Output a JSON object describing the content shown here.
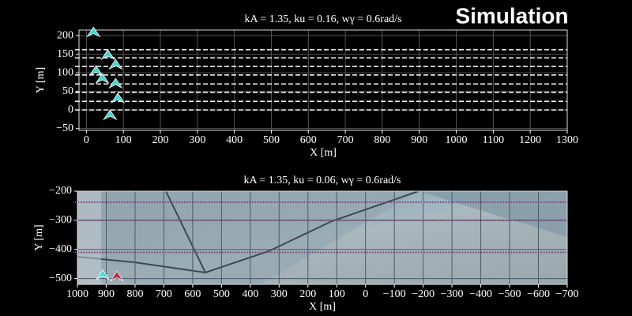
{
  "header": {
    "title": "Simulation"
  },
  "chart_data": [
    {
      "type": "scatter",
      "title": "kA = 1.35, ku = 0.16, wγ = 0.6rad/s",
      "xlabel": "X [m]",
      "ylabel": "Y [m]",
      "xlim": [
        -20,
        1300
      ],
      "ylim": [
        -55,
        215
      ],
      "xticks": [
        0,
        100,
        200,
        300,
        400,
        500,
        600,
        700,
        800,
        900,
        1000,
        1100,
        1200,
        1300
      ],
      "yticks": [
        {
          "value": -50,
          "label": "−50"
        },
        0,
        50,
        100,
        150,
        200
      ],
      "grid": true,
      "lanes": {
        "color": "#ffffff",
        "style": "dashed",
        "y": [
          162,
          140,
          117,
          94,
          70,
          47,
          23,
          0
        ]
      },
      "series": [
        {
          "color": "#3fd8d0",
          "x": [
            19,
            58,
            79,
            26,
            43,
            79,
            85,
            64
          ],
          "values": [
            208,
            147,
            121,
            104,
            83,
            70,
            30,
            -15
          ]
        }
      ]
    },
    {
      "type": "scatter",
      "title": "kA = 1.35, ku = 0.06, wγ = 0.6rad/s",
      "xlabel": "X [m]",
      "ylabel": "Y [m]",
      "xlim": [
        1000,
        -700
      ],
      "ylim": [
        -520,
        -200
      ],
      "xticks": [
        1000,
        900,
        800,
        700,
        600,
        500,
        400,
        300,
        200,
        100,
        0,
        {
          "value": -100,
          "label": "−100"
        },
        {
          "value": -200,
          "label": "−200"
        },
        {
          "value": -300,
          "label": "−300"
        },
        {
          "value": -400,
          "label": "−400"
        },
        {
          "value": -500,
          "label": "−500"
        },
        {
          "value": -600,
          "label": "−600"
        },
        {
          "value": -700,
          "label": "−700"
        }
      ],
      "yticks": [
        {
          "value": -500,
          "label": "−500"
        },
        {
          "value": -400,
          "label": "−400"
        },
        {
          "value": -300,
          "label": "−300"
        },
        {
          "value": -200,
          "label": "−200"
        }
      ],
      "grid": true,
      "lanes": {
        "color": "#8a3a8a",
        "style": "dotted",
        "y": [
          -238,
          -300,
          -410
        ]
      },
      "series": [
        {
          "color": "#40e0d0",
          "x": [
            912
          ],
          "values": [
            -489
          ]
        },
        {
          "color": "#b03040",
          "x": [
            863
          ],
          "values": [
            -494
          ]
        }
      ]
    }
  ]
}
